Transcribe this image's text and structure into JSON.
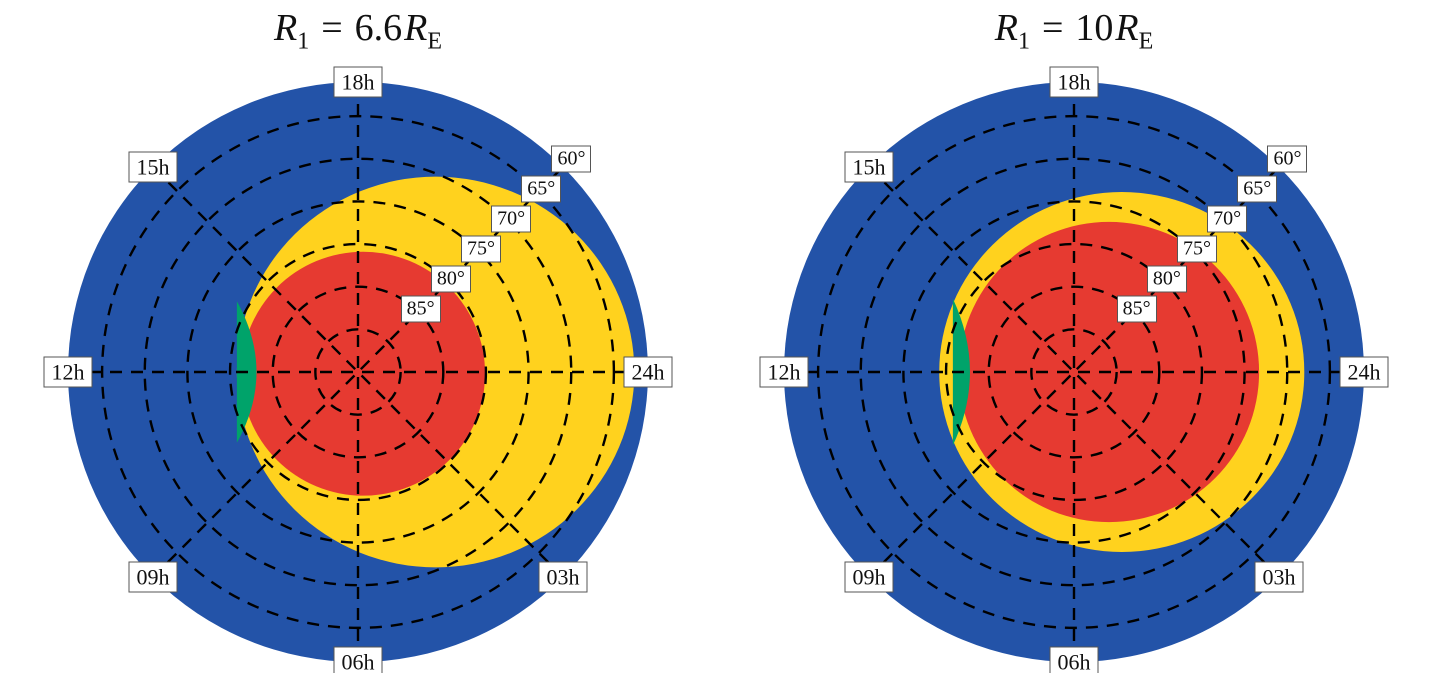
{
  "figure_background": "#ffffff",
  "grid_color": "#000000",
  "chart_data": [
    {
      "type": "polar_map",
      "panel": "left",
      "title_text": "R1 = 6.6 RE",
      "title_parts": {
        "var1": "R",
        "sub1": "1",
        "eq": "=",
        "value": "6.6",
        "var2": "R",
        "sub2": "E"
      },
      "axis": {
        "mlt_labels": [
          {
            "label": "18h",
            "angle_deg": 90
          },
          {
            "label": "15h",
            "angle_deg": 135
          },
          {
            "label": "12h",
            "angle_deg": 180
          },
          {
            "label": "09h",
            "angle_deg": 225
          },
          {
            "label": "06h",
            "angle_deg": 270
          },
          {
            "label": "03h",
            "angle_deg": 315
          },
          {
            "label": "24h",
            "angle_deg": 0
          }
        ],
        "latitude_labels": [
          "85°",
          "80°",
          "75°",
          "70°",
          "65°",
          "60°"
        ],
        "latitude_label_angle_deg": 45,
        "outer_colatitude_deg": 34,
        "grid_style": "dashed"
      },
      "regions": [
        {
          "name": "blue-region",
          "color": "#2353A8",
          "shape": "disc"
        },
        {
          "name": "yellow-region",
          "color": "#FFD21E",
          "shape": "ellipse",
          "center_offset_deg": [
            9.1,
            0.0
          ],
          "semi_axes_deg": [
            23.3,
            22.9
          ]
        },
        {
          "name": "red-region",
          "color": "#E63A31",
          "shape": "circle",
          "center_offset_deg": [
            0.6,
            0.2
          ],
          "radius_deg": 14.3
        },
        {
          "name": "green-region",
          "color": "#00A36A",
          "shape": "lens",
          "left_edge_offset_deg": -14.2,
          "half_chord_deg": 8.3,
          "bulge_deg": 2.3
        }
      ]
    },
    {
      "type": "polar_map",
      "panel": "right",
      "title_text": "R1 = 10 RE",
      "title_parts": {
        "var1": "R",
        "sub1": "1",
        "eq": "=",
        "value": "10",
        "var2": "R",
        "sub2": "E"
      },
      "axis": {
        "mlt_labels": [
          {
            "label": "18h",
            "angle_deg": 90
          },
          {
            "label": "15h",
            "angle_deg": 135
          },
          {
            "label": "12h",
            "angle_deg": 180
          },
          {
            "label": "09h",
            "angle_deg": 225
          },
          {
            "label": "06h",
            "angle_deg": 270
          },
          {
            "label": "03h",
            "angle_deg": 315
          },
          {
            "label": "24h",
            "angle_deg": 0
          }
        ],
        "latitude_labels": [
          "85°",
          "80°",
          "75°",
          "70°",
          "65°",
          "60°"
        ],
        "latitude_label_angle_deg": 45,
        "outer_colatitude_deg": 34,
        "grid_style": "dashed"
      },
      "regions": [
        {
          "name": "blue-region",
          "color": "#2353A8",
          "shape": "disc"
        },
        {
          "name": "yellow-region",
          "color": "#FFD21E",
          "shape": "ellipse",
          "center_offset_deg": [
            5.6,
            0.0
          ],
          "semi_axes_deg": [
            21.4,
            21.1
          ]
        },
        {
          "name": "red-region",
          "color": "#E63A31",
          "shape": "circle",
          "center_offset_deg": [
            4.1,
            0.0
          ],
          "radius_deg": 17.6
        },
        {
          "name": "green-region",
          "color": "#00A36A",
          "shape": "lens",
          "left_edge_offset_deg": -14.2,
          "half_chord_deg": 8.6,
          "bulge_deg": 2.0
        }
      ]
    }
  ]
}
